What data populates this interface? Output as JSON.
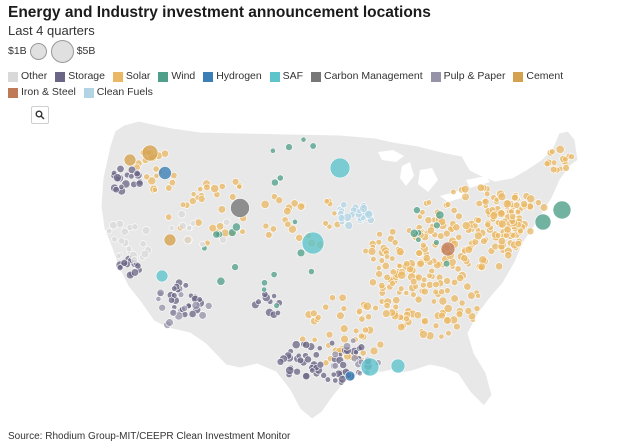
{
  "header": {
    "title": "Energy and Industry investment announcement locations",
    "subtitle": "Last 4 quarters"
  },
  "size_legend": {
    "min_label": "$1B",
    "max_label": "$5B"
  },
  "legend": [
    {
      "label": "Other",
      "color": "#d9d9d9"
    },
    {
      "label": "Storage",
      "color": "#6b6685"
    },
    {
      "label": "Solar",
      "color": "#eab864"
    },
    {
      "label": "Wind",
      "color": "#4f9f8a"
    },
    {
      "label": "Hydrogen",
      "color": "#3b7fb6"
    },
    {
      "label": "SAF",
      "color": "#5ec4cc"
    },
    {
      "label": "Carbon Management",
      "color": "#777777"
    },
    {
      "label": "Pulp & Paper",
      "color": "#9692a8"
    },
    {
      "label": "Cement",
      "color": "#d4a14e"
    },
    {
      "label": "Iron & Steel",
      "color": "#c07956"
    },
    {
      "label": "Clean Fuels",
      "color": "#b3d4e4"
    }
  ],
  "map": {
    "land_color": "#e8e8e8",
    "search_icon": "search-icon"
  },
  "footer": {
    "source": "Source: Rhodium Group-MIT/CEEPR Clean Investment Monitor"
  }
}
